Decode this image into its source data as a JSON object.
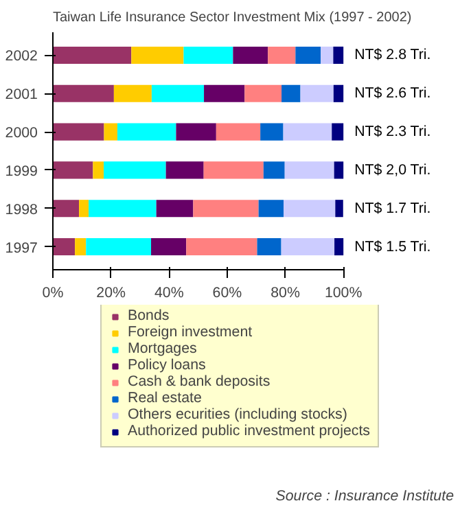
{
  "chart_data": {
    "type": "bar",
    "title": "Taiwan Life Insurance Sector Investment Mix (1997 - 2002)",
    "orientation": "horizontal",
    "stacked": true,
    "categories": [
      "2002",
      "2001",
      "2000",
      "1999",
      "1998",
      "1997"
    ],
    "series": [
      {
        "name": "Bonds",
        "color": "#993366",
        "values": [
          27,
          21,
          17.6,
          13.8,
          9,
          7.6
        ]
      },
      {
        "name": "Foreign investment",
        "color": "#ffcc00",
        "values": [
          18,
          13,
          4.6,
          3.7,
          3.3,
          3.8
        ]
      },
      {
        "name": "Mortgages",
        "color": "#00ffff",
        "values": [
          17,
          18,
          20.2,
          21.4,
          23.3,
          22.4
        ]
      },
      {
        "name": "Policy loans",
        "color": "#660066",
        "values": [
          12,
          14,
          13.8,
          13,
          12.7,
          12.1
        ]
      },
      {
        "name": "Cash & bank deposits",
        "color": "#ff8080",
        "values": [
          9.5,
          12.7,
          15.2,
          20.6,
          22.5,
          24.4
        ]
      },
      {
        "name": "Real estate",
        "color": "#0066cc",
        "values": [
          8.7,
          6.5,
          7.9,
          7.3,
          8.6,
          8.3
        ]
      },
      {
        "name": "Others ecurities (including stocks)",
        "color": "#ccccff",
        "values": [
          4.3,
          11.4,
          16.7,
          17,
          17.8,
          18.3
        ]
      },
      {
        "name": "Authorized public investment projects",
        "color": "#000080",
        "values": [
          3.5,
          3.4,
          4,
          3.2,
          2.7,
          3.1
        ]
      }
    ],
    "totals": [
      "NT$ 2.8 Tri.",
      "NT$ 2.6 Tri.",
      "NT$ 2.3 Tri.",
      "NT$ 2,0 Tri.",
      "NT$ 1.7 Tri.",
      "NT$ 1.5 Tri."
    ],
    "xlim": [
      0,
      100
    ],
    "xticks": [
      {
        "value": 0,
        "label": "0%"
      },
      {
        "value": 20,
        "label": "20%"
      },
      {
        "value": 40,
        "label": "40%"
      },
      {
        "value": 60,
        "label": "60%"
      },
      {
        "value": 80,
        "label": "80%"
      },
      {
        "value": 100,
        "label": "100%"
      }
    ],
    "grid": false,
    "legend": "bottom",
    "annotations": [
      "Source : Insurance Institute"
    ]
  }
}
